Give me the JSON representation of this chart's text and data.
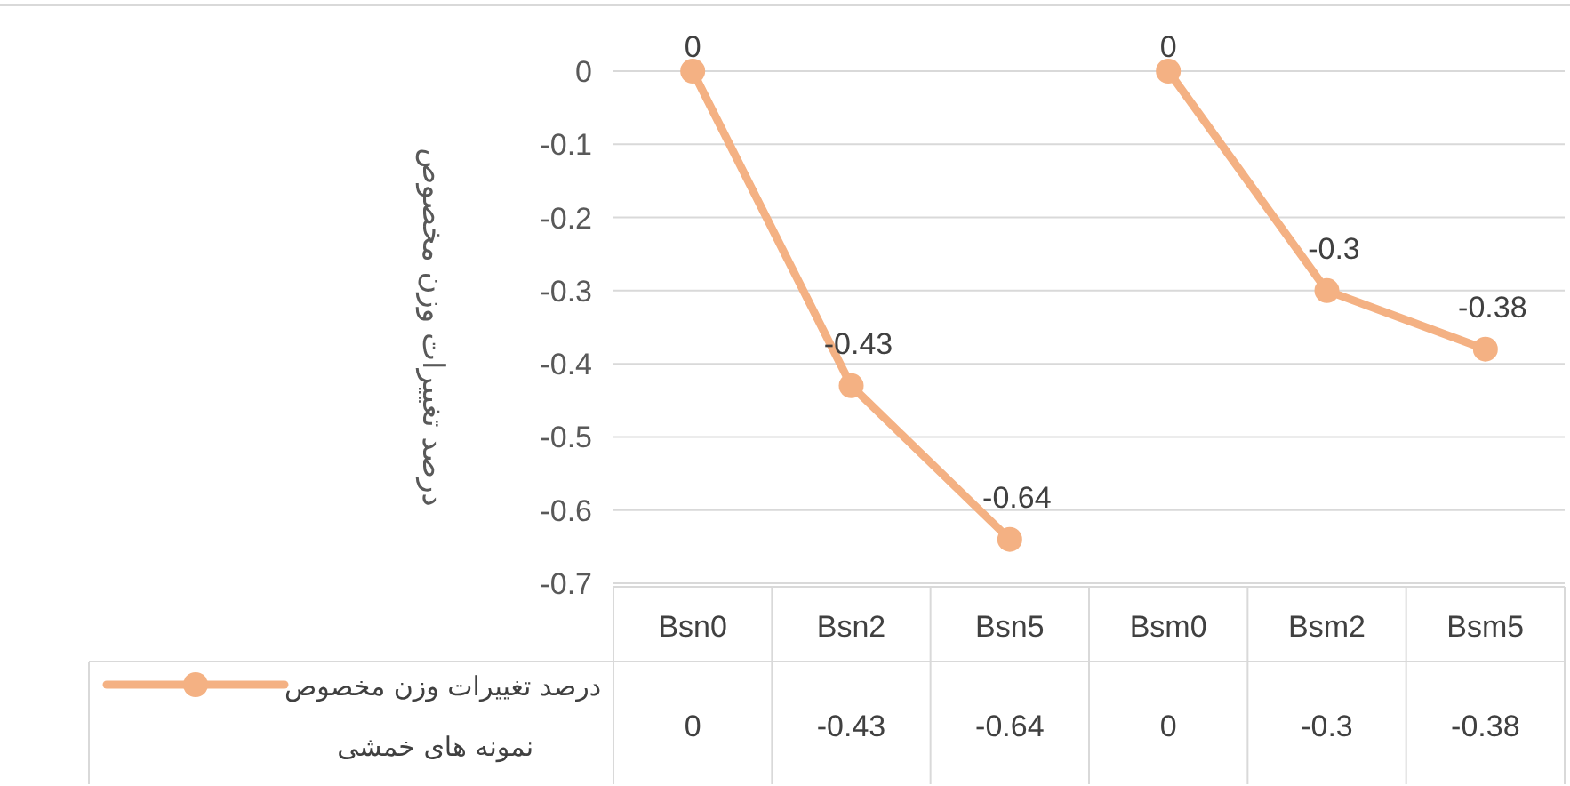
{
  "chart_data": {
    "type": "line",
    "ylabel": "درصد تغییرات وزن مخصوص",
    "categories": [
      "Bsn0",
      "Bsn2",
      "Bsn5",
      "Bsm0",
      "Bsm2",
      "Bsm5"
    ],
    "series": [
      {
        "name": "درصد تغییرات وزن مخصوص نمونه های خمشی",
        "color": "#f4b183",
        "values": [
          0,
          -0.43,
          -0.64,
          null,
          null,
          null
        ]
      },
      {
        "color": "#f4b183",
        "values": [
          null,
          null,
          null,
          0,
          -0.3,
          -0.38
        ]
      }
    ],
    "annotations": [
      "0",
      "-0.43",
      "-0.64",
      "0",
      "-0.3",
      "-0.38"
    ],
    "ylim": [
      -0.7,
      0
    ],
    "yticks": [
      0,
      -0.1,
      -0.2,
      -0.3,
      -0.4,
      -0.5,
      -0.6,
      -0.7
    ],
    "grid": "y",
    "legend": "bottom",
    "marker": "circle",
    "data_labels": true
  }
}
